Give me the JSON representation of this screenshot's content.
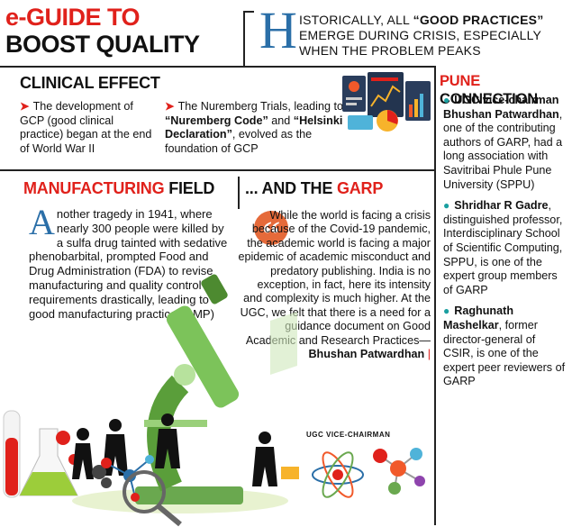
{
  "header": {
    "title_line1": "e-GUIDE TO",
    "title_line2": "BOOST QUALITY",
    "intro_initial": "H",
    "intro_part1": "ISTORICALLY, ALL ",
    "intro_bold": "“GOOD PRACTICES”",
    "intro_part2": " EMERGE DURING CRISIS, ESPECIALLY WHEN THE PROBLEM PEAKS"
  },
  "clinical": {
    "title": "CLINICAL EFFECT",
    "point1": "The development of GCP (good clinical practice) began at the end of World War II",
    "point2_part1": "The Nuremberg Trials, leading to ",
    "point2_bold1": "“Nuremberg Code”",
    "point2_part2": " and ",
    "point2_bold2": "“Helsinki Declaration”",
    "point2_part3": ", evolved as the foundation of GCP"
  },
  "manufacturing": {
    "title_part1": "MANUFACTURING",
    "title_part2": " FIELD",
    "initial": "A",
    "text": "nother tragedy in 1941, where nearly 300 people were killed by a sulfa drug tainted with sedative phenobarbital, prompted Food and Drug Administration (FDA) to revise manufacturing and quality control requirements drastically, leading to good manufacturing practice (GMP)"
  },
  "garp": {
    "title_part1": "... AND THE ",
    "title_part2": "GARP",
    "quote_mark": "“",
    "quote": "While the world is facing a crisis because of the Covid-19 pandemic, the academic world is facing a major epidemic of academic misconduct and predatory publishing. India is no exception, in fact, here its intensity and complexity is much higher. At the UGC, we felt that there is a need for a guidance document on Good Academic and Research Practices—",
    "author": "Bhushan Patwardhan",
    "author_bar": "|",
    "author_role": "UGC VICE-CHAIRMAN"
  },
  "pune": {
    "title_part1": "PUNE",
    "title_part2": " CONNECTION",
    "entries": [
      {
        "name": "UGC vice-chairman Bhushan Patwardhan",
        "text": ", one of the contributing authors of GARP, had a long association with Savitribai Phule Pune University (SPPU)"
      },
      {
        "name": "Shridhar R Gadre",
        "text": ", distinguished professor, Interdisciplinary School of Scientific Computing, SPPU, is one of the expert group members of GARP"
      },
      {
        "name": "Raghunath Mashelkar",
        "text": ", former director-general of CSIR, is one of the expert peer reviewers of GARP"
      }
    ]
  },
  "colors": {
    "accent_red": "#e0211b",
    "teal": "#1a9fa0",
    "blue_initial": "#2b6fa8",
    "quote_orange": "#e56a3a"
  }
}
